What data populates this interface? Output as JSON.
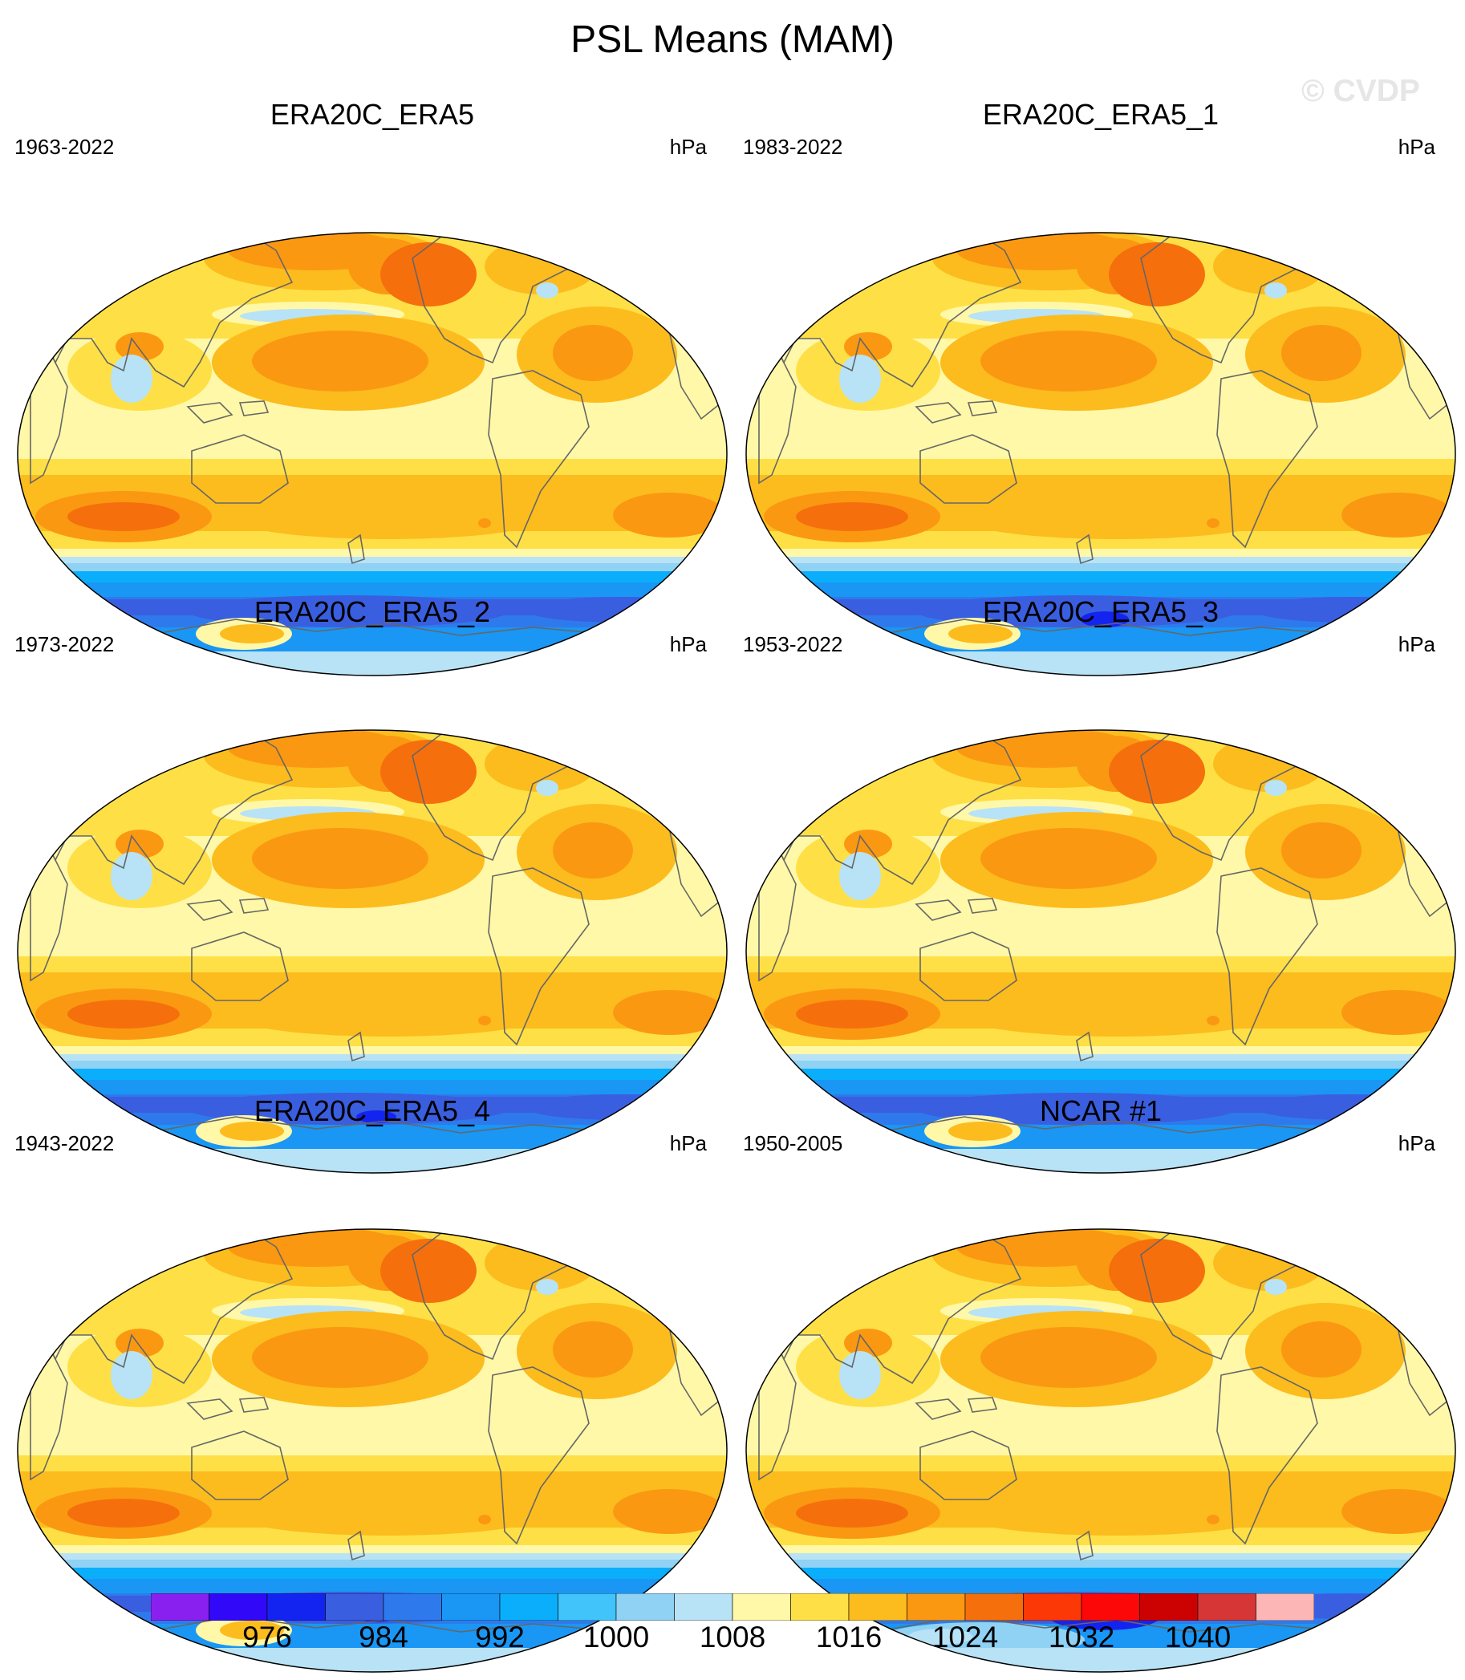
{
  "title": "PSL Means (MAM)",
  "watermark": "© CVDP",
  "units_label": "hPa",
  "panels": [
    {
      "name": "ERA20C_ERA5",
      "period": "1963-2022",
      "variant": "a"
    },
    {
      "name": "ERA20C_ERA5_1",
      "period": "1983-2022",
      "variant": "b"
    },
    {
      "name": "ERA20C_ERA5_2",
      "period": "1973-2022",
      "variant": "c"
    },
    {
      "name": "ERA20C_ERA5_3",
      "period": "1953-2022",
      "variant": "a"
    },
    {
      "name": "ERA20C_ERA5_4",
      "period": "1943-2022",
      "variant": "c"
    },
    {
      "name": "NCAR #1",
      "period": "1950-2005",
      "variant": "d"
    }
  ],
  "colorbar": {
    "colors": [
      "#8a20f0",
      "#3208f8",
      "#1424f0",
      "#3a5ee0",
      "#2e7aec",
      "#1a96f4",
      "#0aaefa",
      "#40c4fa",
      "#90d2f4",
      "#b8e2f6",
      "#fff8a8",
      "#fee046",
      "#fcbc1e",
      "#fb9812",
      "#f5700c",
      "#fc3806",
      "#fc0808",
      "#cc0202",
      "#d63636",
      "#fcb6b6"
    ],
    "labels": [
      "976",
      "984",
      "992",
      "1000",
      "1008",
      "1016",
      "1024",
      "1032",
      "1040"
    ]
  }
}
